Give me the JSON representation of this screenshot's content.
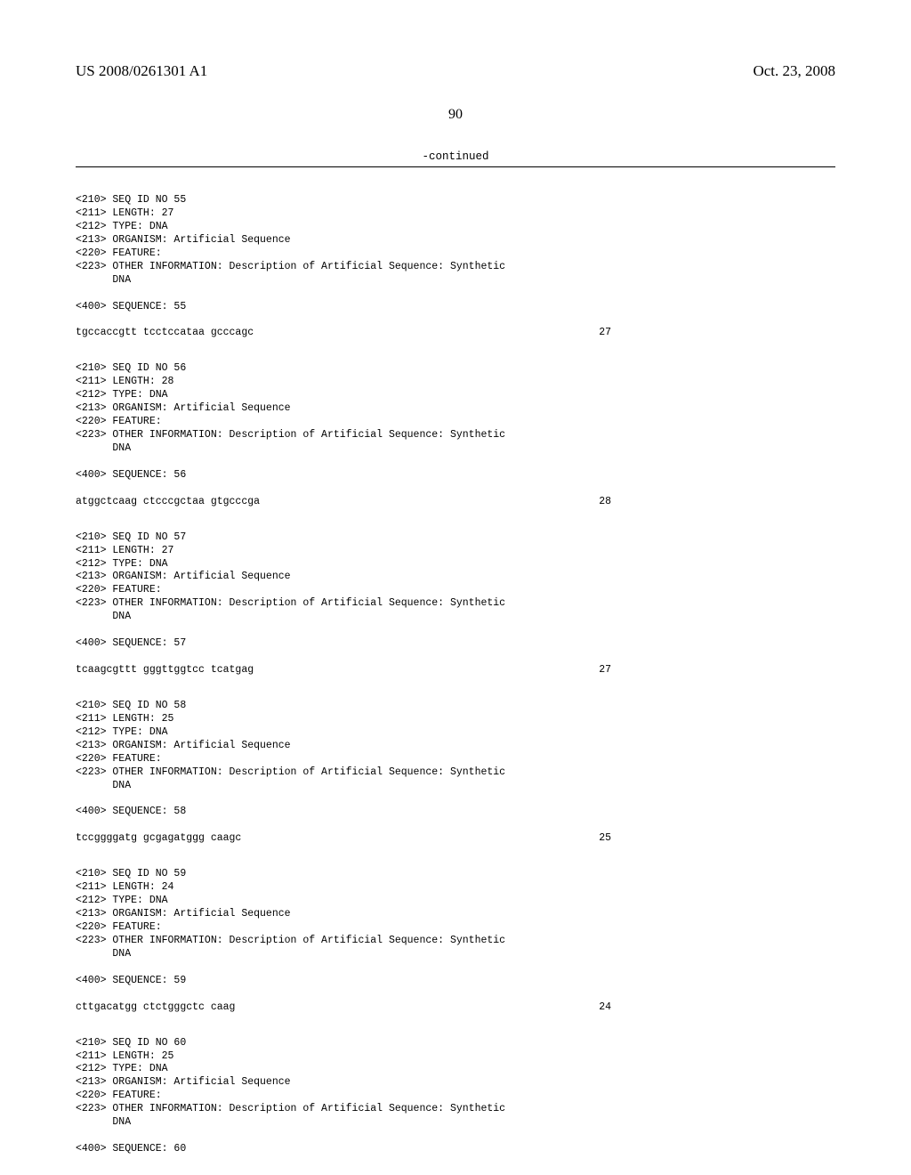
{
  "header": {
    "left": "US 2008/0261301 A1",
    "right": "Oct. 23, 2008"
  },
  "page_number": "90",
  "continued_label": "-continued",
  "sequences": [
    {
      "meta": [
        "<210> SEQ ID NO 55",
        "<211> LENGTH: 27",
        "<212> TYPE: DNA",
        "<213> ORGANISM: Artificial Sequence",
        "<220> FEATURE:",
        "<223> OTHER INFORMATION: Description of Artificial Sequence: Synthetic",
        "      DNA"
      ],
      "seq_tag": "<400> SEQUENCE: 55",
      "seq_line": "tgccaccgtt tcctccataa gcccagc",
      "seq_len": "27"
    },
    {
      "meta": [
        "<210> SEQ ID NO 56",
        "<211> LENGTH: 28",
        "<212> TYPE: DNA",
        "<213> ORGANISM: Artificial Sequence",
        "<220> FEATURE:",
        "<223> OTHER INFORMATION: Description of Artificial Sequence: Synthetic",
        "      DNA"
      ],
      "seq_tag": "<400> SEQUENCE: 56",
      "seq_line": "atggctcaag ctcccgctaa gtgcccga",
      "seq_len": "28"
    },
    {
      "meta": [
        "<210> SEQ ID NO 57",
        "<211> LENGTH: 27",
        "<212> TYPE: DNA",
        "<213> ORGANISM: Artificial Sequence",
        "<220> FEATURE:",
        "<223> OTHER INFORMATION: Description of Artificial Sequence: Synthetic",
        "      DNA"
      ],
      "seq_tag": "<400> SEQUENCE: 57",
      "seq_line": "tcaagcgttt gggttggtcc tcatgag",
      "seq_len": "27"
    },
    {
      "meta": [
        "<210> SEQ ID NO 58",
        "<211> LENGTH: 25",
        "<212> TYPE: DNA",
        "<213> ORGANISM: Artificial Sequence",
        "<220> FEATURE:",
        "<223> OTHER INFORMATION: Description of Artificial Sequence: Synthetic",
        "      DNA"
      ],
      "seq_tag": "<400> SEQUENCE: 58",
      "seq_line": "tccggggatg gcgagatggg caagc",
      "seq_len": "25"
    },
    {
      "meta": [
        "<210> SEQ ID NO 59",
        "<211> LENGTH: 24",
        "<212> TYPE: DNA",
        "<213> ORGANISM: Artificial Sequence",
        "<220> FEATURE:",
        "<223> OTHER INFORMATION: Description of Artificial Sequence: Synthetic",
        "      DNA"
      ],
      "seq_tag": "<400> SEQUENCE: 59",
      "seq_line": "cttgacatgg ctctgggctc caag",
      "seq_len": "24"
    },
    {
      "meta": [
        "<210> SEQ ID NO 60",
        "<211> LENGTH: 25",
        "<212> TYPE: DNA",
        "<213> ORGANISM: Artificial Sequence",
        "<220> FEATURE:",
        "<223> OTHER INFORMATION: Description of Artificial Sequence: Synthetic",
        "      DNA"
      ],
      "seq_tag": "<400> SEQUENCE: 60",
      "seq_line": "",
      "seq_len": ""
    }
  ]
}
